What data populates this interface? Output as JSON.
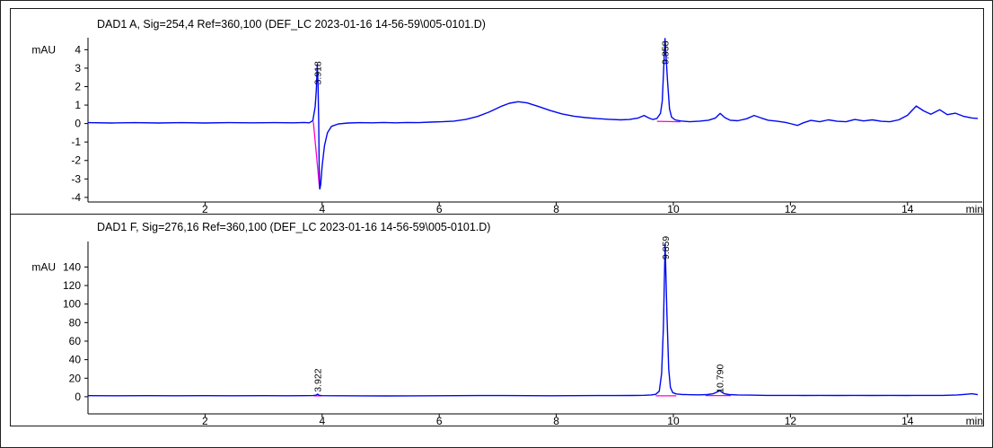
{
  "colors": {
    "background": "#ffffff",
    "panel_border": "#1a1a1a",
    "axis": "#000000",
    "title_text": "#0000e0",
    "trace": "#0008f0",
    "integration_marker": "#ff00cc",
    "tick_text": "#000000"
  },
  "chart_data": [
    {
      "type": "line",
      "title": "DAD1 A, Sig=254,4 Ref=360,100 (DEF_LC 2023-01-16 14-56-59\\005-0101.D)",
      "ylabel": "mAU",
      "xunit": "min",
      "xlim": [
        0,
        15.2
      ],
      "ylim": [
        -4.25,
        4.65
      ],
      "xticks": [
        2,
        4,
        6,
        8,
        10,
        12,
        14
      ],
      "yticks": [
        4,
        3,
        2,
        1,
        0,
        -1,
        -2,
        -3,
        -4
      ],
      "grid": false,
      "legend": false,
      "peaks": [
        {
          "rt": "3.918",
          "x": 3.918,
          "label_y": 2.1
        },
        {
          "rt": "9.858",
          "x": 9.858,
          "label_y": 3.2
        }
      ],
      "integration_baselines": [
        [
          [
            3.85,
            0.1
          ],
          [
            3.955,
            -3.5
          ]
        ],
        [
          [
            9.72,
            0.12
          ],
          [
            10.12,
            0.1
          ]
        ]
      ],
      "signal": [
        [
          0,
          0.05
        ],
        [
          0.4,
          0.03
        ],
        [
          0.8,
          0.05
        ],
        [
          1.2,
          0.03
        ],
        [
          1.6,
          0.05
        ],
        [
          2,
          0.03
        ],
        [
          2.4,
          0.05
        ],
        [
          2.8,
          0.04
        ],
        [
          3.2,
          0.05
        ],
        [
          3.5,
          0.04
        ],
        [
          3.7,
          0.06
        ],
        [
          3.78,
          0.04
        ],
        [
          3.84,
          0.15
        ],
        [
          3.88,
          0.9
        ],
        [
          3.9,
          1.8
        ],
        [
          3.918,
          3.2
        ],
        [
          3.93,
          2.2
        ],
        [
          3.942,
          0
        ],
        [
          3.95,
          -2.4
        ],
        [
          3.96,
          -3.55
        ],
        [
          3.975,
          -3.3
        ],
        [
          4,
          -2.3
        ],
        [
          4.04,
          -1.2
        ],
        [
          4.09,
          -0.5
        ],
        [
          4.16,
          -0.15
        ],
        [
          4.28,
          -0.02
        ],
        [
          4.45,
          0.03
        ],
        [
          4.65,
          0.05
        ],
        [
          4.85,
          0.04
        ],
        [
          5.05,
          0.06
        ],
        [
          5.25,
          0.04
        ],
        [
          5.45,
          0.06
        ],
        [
          5.65,
          0.05
        ],
        [
          5.85,
          0.08
        ],
        [
          6.05,
          0.1
        ],
        [
          6.25,
          0.13
        ],
        [
          6.45,
          0.22
        ],
        [
          6.65,
          0.38
        ],
        [
          6.85,
          0.62
        ],
        [
          7.05,
          0.92
        ],
        [
          7.2,
          1.1
        ],
        [
          7.35,
          1.18
        ],
        [
          7.5,
          1.12
        ],
        [
          7.7,
          0.92
        ],
        [
          7.9,
          0.7
        ],
        [
          8.1,
          0.52
        ],
        [
          8.3,
          0.4
        ],
        [
          8.5,
          0.32
        ],
        [
          8.7,
          0.27
        ],
        [
          8.9,
          0.23
        ],
        [
          9.1,
          0.2
        ],
        [
          9.25,
          0.22
        ],
        [
          9.4,
          0.3
        ],
        [
          9.5,
          0.44
        ],
        [
          9.58,
          0.3
        ],
        [
          9.65,
          0.22
        ],
        [
          9.72,
          0.28
        ],
        [
          9.78,
          0.55
        ],
        [
          9.81,
          1.2
        ],
        [
          9.858,
          4.6
        ],
        [
          9.9,
          2.3
        ],
        [
          9.935,
          0.8
        ],
        [
          9.97,
          0.35
        ],
        [
          10.03,
          0.2
        ],
        [
          10.12,
          0.14
        ],
        [
          10.28,
          0.1
        ],
        [
          10.45,
          0.13
        ],
        [
          10.6,
          0.18
        ],
        [
          10.72,
          0.3
        ],
        [
          10.8,
          0.55
        ],
        [
          10.88,
          0.32
        ],
        [
          10.97,
          0.18
        ],
        [
          11.1,
          0.15
        ],
        [
          11.25,
          0.26
        ],
        [
          11.38,
          0.44
        ],
        [
          11.5,
          0.3
        ],
        [
          11.62,
          0.18
        ],
        [
          11.78,
          0.12
        ],
        [
          11.92,
          0.06
        ],
        [
          12.02,
          -0.02
        ],
        [
          12.12,
          -0.1
        ],
        [
          12.22,
          0.04
        ],
        [
          12.35,
          0.17
        ],
        [
          12.5,
          0.1
        ],
        [
          12.65,
          0.2
        ],
        [
          12.8,
          0.12
        ],
        [
          12.95,
          0.1
        ],
        [
          13.1,
          0.22
        ],
        [
          13.25,
          0.14
        ],
        [
          13.4,
          0.2
        ],
        [
          13.55,
          0.12
        ],
        [
          13.7,
          0.1
        ],
        [
          13.85,
          0.2
        ],
        [
          14,
          0.45
        ],
        [
          14.15,
          0.95
        ],
        [
          14.28,
          0.68
        ],
        [
          14.4,
          0.5
        ],
        [
          14.55,
          0.75
        ],
        [
          14.68,
          0.48
        ],
        [
          14.82,
          0.56
        ],
        [
          14.95,
          0.4
        ],
        [
          15.1,
          0.3
        ],
        [
          15.2,
          0.28
        ]
      ]
    },
    {
      "type": "line",
      "title": "DAD1 F, Sig=276,16 Ref=360,100 (DEF_LC 2023-01-16 14-56-59\\005-0101.D)",
      "ylabel": "mAU",
      "xunit": "min",
      "xlim": [
        0,
        15.2
      ],
      "ylim": [
        -18.5,
        167.5
      ],
      "xticks": [
        2,
        4,
        6,
        8,
        10,
        12,
        14
      ],
      "yticks": [
        140,
        120,
        100,
        80,
        60,
        40,
        20,
        0
      ],
      "grid": false,
      "legend": false,
      "peaks": [
        {
          "rt": "3.922",
          "x": 3.922,
          "label_y": 5
        },
        {
          "rt": "9.859",
          "x": 9.859,
          "label_y": 148
        },
        {
          "rt": "10.790",
          "x": 10.79,
          "label_y": 4
        }
      ],
      "integration_baselines": [
        [
          [
            3.86,
            1.0
          ],
          [
            3.99,
            1.0
          ]
        ],
        [
          [
            9.7,
            1.0
          ],
          [
            10.05,
            1.0
          ]
        ],
        [
          [
            10.55,
            1.3
          ],
          [
            10.98,
            1.3
          ]
        ]
      ],
      "signal": [
        [
          0,
          1.2
        ],
        [
          0.5,
          1.1
        ],
        [
          1,
          1.2
        ],
        [
          1.5,
          1.1
        ],
        [
          2,
          1.2
        ],
        [
          2.5,
          1.1
        ],
        [
          3,
          1.2
        ],
        [
          3.4,
          1.1
        ],
        [
          3.7,
          1.2
        ],
        [
          3.85,
          1.3
        ],
        [
          3.9,
          1.7
        ],
        [
          3.922,
          2.8
        ],
        [
          3.95,
          1.6
        ],
        [
          4,
          1.2
        ],
        [
          4.3,
          1.1
        ],
        [
          4.7,
          1
        ],
        [
          5.1,
          0.9
        ],
        [
          5.5,
          1
        ],
        [
          5.9,
          1.1
        ],
        [
          6.3,
          1.2
        ],
        [
          6.7,
          1.3
        ],
        [
          7.1,
          1.3
        ],
        [
          7.5,
          1.2
        ],
        [
          7.9,
          1.1
        ],
        [
          8.3,
          1.2
        ],
        [
          8.7,
          1.3
        ],
        [
          9,
          1.3
        ],
        [
          9.3,
          1.4
        ],
        [
          9.5,
          1.6
        ],
        [
          9.62,
          1.9
        ],
        [
          9.7,
          2.6
        ],
        [
          9.76,
          6
        ],
        [
          9.8,
          25
        ],
        [
          9.83,
          75
        ],
        [
          9.859,
          165
        ],
        [
          9.89,
          90
        ],
        [
          9.92,
          30
        ],
        [
          9.95,
          10
        ],
        [
          9.99,
          4.5
        ],
        [
          10.05,
          3
        ],
        [
          10.15,
          2.4
        ],
        [
          10.3,
          2.1
        ],
        [
          10.45,
          2
        ],
        [
          10.58,
          2.3
        ],
        [
          10.68,
          3.2
        ],
        [
          10.79,
          6.5
        ],
        [
          10.87,
          3.2
        ],
        [
          10.95,
          2.3
        ],
        [
          11.1,
          1.9
        ],
        [
          11.3,
          1.7
        ],
        [
          11.6,
          1.5
        ],
        [
          11.9,
          1.5
        ],
        [
          12.2,
          1.4
        ],
        [
          12.5,
          1.5
        ],
        [
          12.8,
          1.4
        ],
        [
          13.1,
          1.5
        ],
        [
          13.4,
          1.4
        ],
        [
          13.7,
          1.5
        ],
        [
          14,
          1.4
        ],
        [
          14.3,
          1.5
        ],
        [
          14.6,
          1.5
        ],
        [
          14.85,
          1.9
        ],
        [
          15,
          2.6
        ],
        [
          15.1,
          3.2
        ],
        [
          15.2,
          2.2
        ]
      ]
    }
  ]
}
